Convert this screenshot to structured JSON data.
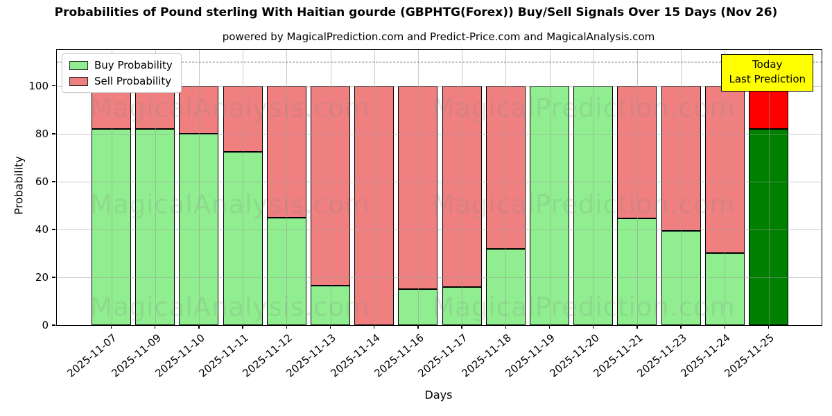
{
  "chart_data": {
    "type": "bar",
    "stacked": true,
    "title": "Probabilities of Pound sterling With Haitian gourde (GBPHTG(Forex)) Buy/Sell Signals Over 15 Days (Nov 26)",
    "subtitle": "powered by MagicalPrediction.com and Predict-Price.com and MagicalAnalysis.com",
    "xlabel": "Days",
    "ylabel": "Probability",
    "categories": [
      "2025-11-07",
      "2025-11-09",
      "2025-11-10",
      "2025-11-11",
      "2025-11-12",
      "2025-11-13",
      "2025-11-14",
      "2025-11-16",
      "2025-11-17",
      "2025-11-18",
      "2025-11-19",
      "2025-11-20",
      "2025-11-21",
      "2025-11-23",
      "2025-11-24",
      "2025-11-25"
    ],
    "series": [
      {
        "name": "Buy Probability",
        "color": "#90ee90",
        "values": [
          82,
          82,
          80,
          72.5,
          45,
          16.5,
          0,
          15,
          16,
          32,
          100,
          100,
          44.5,
          39.5,
          30,
          82
        ]
      },
      {
        "name": "Sell Probability",
        "color": "#f08080",
        "values": [
          18,
          18,
          20,
          27.5,
          55,
          83.5,
          100,
          85,
          84,
          68,
          0,
          0,
          55.5,
          60.5,
          70,
          18
        ]
      }
    ],
    "today_bar": {
      "index": 15,
      "buy_color": "#008000",
      "sell_color": "#ff0000"
    },
    "yticks": [
      0,
      20,
      40,
      60,
      80,
      100
    ],
    "ylim": [
      0,
      115
    ],
    "threshold_line": {
      "y": 110,
      "style": "dashed",
      "color": "#5a5a5a"
    },
    "grid": true,
    "legend_position": "upper left",
    "bar_edge_color": "#000000"
  },
  "annotation_box": {
    "line1": "Today",
    "line2": "Last Prediction",
    "bg_color": "#ffff00"
  },
  "watermarks": {
    "left": "MagicalAnalysis.com",
    "right": "MagicalPrediction.com"
  }
}
